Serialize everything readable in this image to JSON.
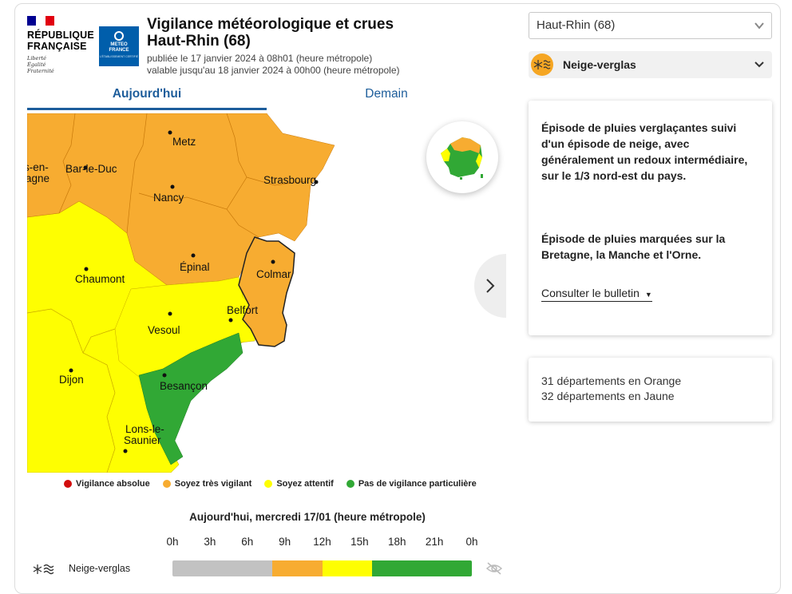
{
  "header": {
    "republique_line1": "RÉPUBLIQUE",
    "republique_line2": "FRANÇAISE",
    "motto": [
      "Liberté",
      "Égalité",
      "Fraternité"
    ],
    "meteo_logo_line1": "METEO",
    "meteo_logo_line2": "FRANCE",
    "meteo_logo_line3": "L'ÉTABLISSEMENT CERTIFIÉ",
    "title_line1": "Vigilance météorologique et crues",
    "title_line2": "Haut-Rhin (68)",
    "published": "publiée le 17 janvier 2024 à 08h01 (heure métropole)",
    "valid_until": "valable jusqu'au 18 janvier 2024 à 00h00 (heure métropole)"
  },
  "tabs": {
    "today": "Aujourd'hui",
    "tomorrow": "Demain"
  },
  "map": {
    "cities": {
      "chalons": "s-en-",
      "chalons2": "agne",
      "barleduc": "Bar-le-Duc",
      "metz": "Metz",
      "nancy": "Nancy",
      "strasbourg": "Strasbourg",
      "chaumont": "Chaumont",
      "epinal": "Épinal",
      "colmar": "Colmar",
      "belfort": "Belfort",
      "vesoul": "Vesoul",
      "dijon": "Dijon",
      "besancon": "Besançon",
      "lons1": "Lons-le-",
      "lons2": "Saunier"
    },
    "colors": {
      "orange": "#f7ac31",
      "yellow": "#fefe01",
      "green": "#31a835",
      "red": "#d20d0d",
      "gray": "#c2c2c2"
    }
  },
  "legend": [
    {
      "label": "Vigilance absolue",
      "color": "#d20d0d"
    },
    {
      "label": "Soyez très vigilant",
      "color": "#f7ac31"
    },
    {
      "label": "Soyez attentif",
      "color": "#fefe01"
    },
    {
      "label": "Pas de vigilance particulière",
      "color": "#31a835"
    }
  ],
  "timeline": {
    "title": "Aujourd'hui, mercredi 17/01 (heure métropole)",
    "hours": [
      "0h",
      "3h",
      "6h",
      "9h",
      "12h",
      "15h",
      "18h",
      "21h",
      "0h"
    ],
    "row_label": "Neige-verglas",
    "segments": [
      {
        "from_hour": 0,
        "to_hour": 8,
        "color": "#c2c2c2"
      },
      {
        "from_hour": 8,
        "to_hour": 12,
        "color": "#f7ac31"
      },
      {
        "from_hour": 12,
        "to_hour": 16,
        "color": "#fefe01"
      },
      {
        "from_hour": 16,
        "to_hour": 24,
        "color": "#31a835"
      }
    ]
  },
  "sidebar": {
    "department_select": "Haut-Rhin (68)",
    "phenomenon": "Neige-verglas",
    "bulletin_para1": "Épisode de pluies verglaçantes suivi d'un épisode de neige, avec généralement un redoux intermédiaire, sur le 1/3 nord-est du pays.",
    "bulletin_para2": "Épisode de pluies marquées sur la Bretagne, la Manche et l'Orne.",
    "bulletin_link": "Consulter le bulletin",
    "count_orange": "31 départements en Orange",
    "count_yellow": "32 départements en Jaune"
  }
}
